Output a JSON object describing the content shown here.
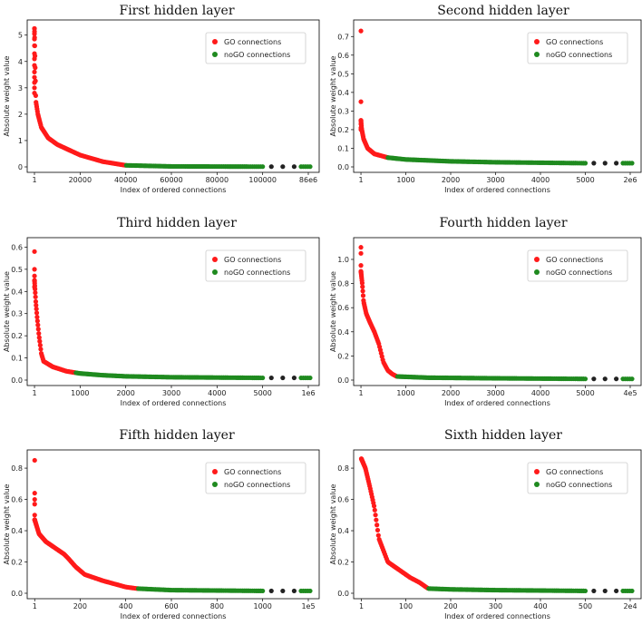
{
  "chart_data": [
    {
      "type": "scatter",
      "title": "First hidden layer",
      "xlabel": "Index of ordered connections",
      "ylabel": "Absolute weight value",
      "x_ticks": [
        "1",
        "20000",
        "40000",
        "60000",
        "80000",
        "100000",
        "86e6"
      ],
      "x_max_label": "86e6",
      "x_linear_max": 100000,
      "x_max": 120000,
      "go_max_index": 40000,
      "y_ticks": [
        0,
        1,
        2,
        3,
        4,
        5
      ],
      "ylim": [
        0,
        5.3
      ],
      "top_values": [
        5.25,
        5.05,
        4.85,
        4.6,
        4.3,
        4.1,
        3.85,
        3.6,
        3.4,
        3.2,
        3.0,
        2.8
      ],
      "decay_points": [
        [
          1,
          5.25
        ],
        [
          600,
          2.5
        ],
        [
          1500,
          2.0
        ],
        [
          3000,
          1.5
        ],
        [
          6000,
          1.1
        ],
        [
          10000,
          0.85
        ],
        [
          20000,
          0.45
        ],
        [
          30000,
          0.2
        ],
        [
          40000,
          0.06
        ],
        [
          60000,
          0.02
        ],
        [
          100000,
          0.01
        ]
      ],
      "legend": [
        "GO connections",
        "noGO connections"
      ],
      "colors": {
        "go": "#ff1a1a",
        "nogo": "#1f8a1f",
        "gap": "#222222"
      }
    },
    {
      "type": "scatter",
      "title": "Second hidden layer",
      "xlabel": "Index of ordered connections",
      "ylabel": "Absolute weight value",
      "x_ticks": [
        "1",
        "1000",
        "2000",
        "3000",
        "4000",
        "5000",
        "2e6"
      ],
      "x_max_label": "2e6",
      "x_linear_max": 5000,
      "x_max": 6000,
      "go_max_index": 600,
      "y_ticks": [
        0.0,
        0.1,
        0.2,
        0.3,
        0.4,
        0.5,
        0.6,
        0.7
      ],
      "ylim": [
        0,
        0.75
      ],
      "top_values": [
        0.73,
        0.35,
        0.25,
        0.23,
        0.21,
        0.2
      ],
      "decay_points": [
        [
          1,
          0.25
        ],
        [
          20,
          0.2
        ],
        [
          60,
          0.15
        ],
        [
          150,
          0.1
        ],
        [
          300,
          0.07
        ],
        [
          600,
          0.05
        ],
        [
          1000,
          0.04
        ],
        [
          2000,
          0.03
        ],
        [
          3000,
          0.025
        ],
        [
          5000,
          0.02
        ]
      ],
      "legend": [
        "GO connections",
        "noGO connections"
      ],
      "colors": {
        "go": "#ff1a1a",
        "nogo": "#1f8a1f",
        "gap": "#222222"
      }
    },
    {
      "type": "scatter",
      "title": "Third hidden layer",
      "xlabel": "Index of ordered connections",
      "ylabel": "Absolute weight value",
      "x_ticks": [
        "1",
        "1000",
        "2000",
        "3000",
        "4000",
        "5000",
        "1e6"
      ],
      "x_max_label": "1e6",
      "x_linear_max": 5000,
      "x_max": 6000,
      "go_max_index": 900,
      "y_ticks": [
        0.0,
        0.1,
        0.2,
        0.3,
        0.4,
        0.5,
        0.6
      ],
      "ylim": [
        0,
        0.61
      ],
      "top_values": [
        0.58,
        0.5,
        0.47,
        0.45,
        0.42
      ],
      "decay_points": [
        [
          1,
          0.45
        ],
        [
          30,
          0.35
        ],
        [
          60,
          0.28
        ],
        [
          100,
          0.2
        ],
        [
          150,
          0.12
        ],
        [
          200,
          0.085
        ],
        [
          400,
          0.06
        ],
        [
          700,
          0.04
        ],
        [
          1000,
          0.03
        ],
        [
          1500,
          0.022
        ],
        [
          2000,
          0.017
        ],
        [
          3000,
          0.013
        ],
        [
          5000,
          0.01
        ]
      ],
      "legend": [
        "GO connections",
        "noGO connections"
      ],
      "colors": {
        "go": "#ff1a1a",
        "nogo": "#1f8a1f",
        "gap": "#222222"
      }
    },
    {
      "type": "scatter",
      "title": "Fourth hidden layer",
      "xlabel": "Index of ordered connections",
      "ylabel": "Absolute weight value",
      "x_ticks": [
        "1",
        "1000",
        "2000",
        "3000",
        "4000",
        "5000",
        "4e5"
      ],
      "x_max_label": "4e5",
      "x_linear_max": 5000,
      "x_max": 6000,
      "go_max_index": 800,
      "y_ticks": [
        0.0,
        0.2,
        0.4,
        0.6,
        0.8,
        1.0
      ],
      "ylim": [
        0,
        1.12
      ],
      "top_values": [
        1.1,
        1.05,
        0.95,
        0.9
      ],
      "decay_points": [
        [
          1,
          0.9
        ],
        [
          30,
          0.8
        ],
        [
          60,
          0.65
        ],
        [
          120,
          0.55
        ],
        [
          200,
          0.48
        ],
        [
          300,
          0.4
        ],
        [
          400,
          0.3
        ],
        [
          500,
          0.15
        ],
        [
          600,
          0.08
        ],
        [
          700,
          0.05
        ],
        [
          800,
          0.03
        ],
        [
          1500,
          0.02
        ],
        [
          3000,
          0.015
        ],
        [
          5000,
          0.01
        ]
      ],
      "legend": [
        "GO connections",
        "noGO connections"
      ],
      "colors": {
        "go": "#ff1a1a",
        "nogo": "#1f8a1f",
        "gap": "#222222"
      }
    },
    {
      "type": "scatter",
      "title": "Fifth hidden layer",
      "xlabel": "Index of ordered connections",
      "ylabel": "Absolute weight value",
      "x_ticks": [
        "1",
        "200",
        "400",
        "600",
        "800",
        "1000",
        "1e5"
      ],
      "x_max_label": "1e5",
      "x_linear_max": 1000,
      "x_max": 1200,
      "go_max_index": 450,
      "y_ticks": [
        0.0,
        0.2,
        0.4,
        0.6,
        0.8
      ],
      "ylim": [
        0,
        0.87
      ],
      "top_values": [
        0.85,
        0.64,
        0.6,
        0.57,
        0.5,
        0.47
      ],
      "decay_points": [
        [
          1,
          0.47
        ],
        [
          20,
          0.38
        ],
        [
          50,
          0.33
        ],
        [
          100,
          0.28
        ],
        [
          130,
          0.25
        ],
        [
          150,
          0.22
        ],
        [
          180,
          0.17
        ],
        [
          220,
          0.12
        ],
        [
          300,
          0.08
        ],
        [
          400,
          0.04
        ],
        [
          450,
          0.03
        ],
        [
          600,
          0.02
        ],
        [
          1000,
          0.015
        ]
      ],
      "legend": [
        "GO connections",
        "noGO connections"
      ],
      "colors": {
        "go": "#ff1a1a",
        "nogo": "#1f8a1f",
        "gap": "#222222"
      }
    },
    {
      "type": "scatter",
      "title": "Sixth hidden layer",
      "xlabel": "Index of ordered connections",
      "ylabel": "Absolute weight value",
      "x_ticks": [
        "1",
        "100",
        "200",
        "300",
        "400",
        "500",
        "2e4"
      ],
      "x_max_label": "2e4",
      "x_linear_max": 500,
      "x_max": 600,
      "go_max_index": 150,
      "y_ticks": [
        0.0,
        0.2,
        0.4,
        0.6,
        0.8
      ],
      "ylim": [
        0,
        0.87
      ],
      "top_values": [],
      "decay_points": [
        [
          1,
          0.86
        ],
        [
          10,
          0.8
        ],
        [
          20,
          0.68
        ],
        [
          30,
          0.55
        ],
        [
          40,
          0.35
        ],
        [
          60,
          0.2
        ],
        [
          90,
          0.14
        ],
        [
          110,
          0.1
        ],
        [
          130,
          0.07
        ],
        [
          150,
          0.03
        ],
        [
          200,
          0.025
        ],
        [
          300,
          0.02
        ],
        [
          500,
          0.015
        ]
      ],
      "legend": [
        "GO connections",
        "noGO connections"
      ],
      "colors": {
        "go": "#ff1a1a",
        "nogo": "#1f8a1f",
        "gap": "#222222"
      }
    }
  ]
}
